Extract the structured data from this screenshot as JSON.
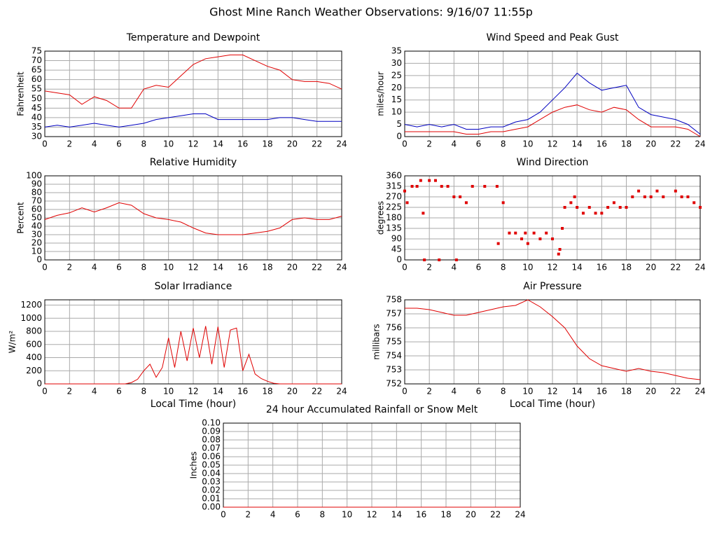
{
  "title": "Ghost Mine Ranch Weather Observations: 9/16/07 11:55p",
  "chart_data": [
    {
      "type": "line",
      "title": "Temperature and Dewpoint",
      "ylabel": "Fahrenheit",
      "x": [
        0,
        1,
        2,
        3,
        4,
        5,
        6,
        7,
        8,
        9,
        10,
        11,
        12,
        13,
        14,
        15,
        16,
        17,
        18,
        19,
        20,
        21,
        22,
        23,
        24
      ],
      "series": [
        {
          "name": "Temperature",
          "color": "#e00000",
          "values": [
            54,
            53,
            52,
            47,
            51,
            49,
            45,
            45,
            55,
            57,
            56,
            62,
            68,
            71,
            72,
            73,
            73,
            70,
            67,
            65,
            60,
            59,
            59,
            58,
            55
          ]
        },
        {
          "name": "Dewpoint",
          "color": "#0000c0",
          "values": [
            35,
            36,
            35,
            36,
            37,
            36,
            35,
            36,
            37,
            39,
            40,
            41,
            42,
            42,
            39,
            39,
            39,
            39,
            39,
            40,
            40,
            39,
            38,
            38,
            38
          ]
        }
      ],
      "xlim": [
        0,
        24
      ],
      "xticks": [
        0,
        2,
        4,
        6,
        8,
        10,
        12,
        14,
        16,
        18,
        20,
        22,
        24
      ],
      "ylim": [
        30,
        75
      ],
      "yticks": [
        30,
        35,
        40,
        45,
        50,
        55,
        60,
        65,
        70,
        75
      ],
      "grid": true
    },
    {
      "type": "line",
      "title": "Wind Speed and Peak Gust",
      "ylabel": "miles/hour",
      "x": [
        0,
        1,
        2,
        3,
        4,
        5,
        6,
        7,
        8,
        9,
        10,
        11,
        12,
        13,
        14,
        15,
        16,
        17,
        18,
        19,
        20,
        21,
        22,
        23,
        24
      ],
      "series": [
        {
          "name": "Peak Gust",
          "color": "#0000c0",
          "values": [
            5,
            4,
            5,
            4,
            5,
            3,
            3,
            4,
            4,
            6,
            7,
            10,
            15,
            20,
            26,
            22,
            19,
            20,
            21,
            12,
            9,
            8,
            7,
            5,
            1
          ]
        },
        {
          "name": "Wind Speed",
          "color": "#e00000",
          "values": [
            2,
            2,
            2,
            2,
            2,
            1,
            1,
            2,
            2,
            3,
            4,
            7,
            10,
            12,
            13,
            11,
            10,
            12,
            11,
            7,
            4,
            4,
            4,
            3,
            0
          ]
        }
      ],
      "xlim": [
        0,
        24
      ],
      "xticks": [
        0,
        2,
        4,
        6,
        8,
        10,
        12,
        14,
        16,
        18,
        20,
        22,
        24
      ],
      "ylim": [
        0,
        35
      ],
      "yticks": [
        0,
        5,
        10,
        15,
        20,
        25,
        30,
        35
      ],
      "grid": true
    },
    {
      "type": "line",
      "title": "Relative Humidity",
      "ylabel": "Percent",
      "x": [
        0,
        1,
        2,
        3,
        4,
        5,
        6,
        7,
        8,
        9,
        10,
        11,
        12,
        13,
        14,
        15,
        16,
        17,
        18,
        19,
        20,
        21,
        22,
        23,
        24
      ],
      "series": [
        {
          "name": "Relative Humidity",
          "color": "#e00000",
          "values": [
            48,
            53,
            56,
            62,
            57,
            62,
            68,
            65,
            55,
            50,
            48,
            45,
            38,
            32,
            30,
            30,
            30,
            32,
            34,
            38,
            48,
            50,
            48,
            48,
            52
          ]
        }
      ],
      "xlim": [
        0,
        24
      ],
      "xticks": [
        0,
        2,
        4,
        6,
        8,
        10,
        12,
        14,
        16,
        18,
        20,
        22,
        24
      ],
      "ylim": [
        0,
        100
      ],
      "yticks": [
        0,
        10,
        20,
        30,
        40,
        50,
        60,
        70,
        80,
        90,
        100
      ],
      "grid": true
    },
    {
      "type": "scatter",
      "title": "Wind Direction",
      "ylabel": "degrees",
      "color": "#e00000",
      "x": [
        0,
        0.2,
        0.6,
        1,
        1.3,
        1.5,
        1.6,
        2,
        2.5,
        2.8,
        3,
        3.5,
        4,
        4.2,
        4.5,
        5,
        5.5,
        6.5,
        7.5,
        7.6,
        8,
        8.5,
        9,
        9.5,
        9.8,
        10,
        10.5,
        11,
        11.5,
        12,
        12.5,
        12.6,
        12.8,
        13,
        13.5,
        13.8,
        14,
        14.5,
        15,
        15.5,
        16,
        16.5,
        17,
        17.5,
        18,
        18.5,
        19,
        19.5,
        20,
        20.5,
        21,
        22,
        22.5,
        23,
        23.5,
        24
      ],
      "values": [
        295,
        245,
        315,
        315,
        340,
        200,
        0,
        340,
        340,
        0,
        315,
        315,
        270,
        0,
        270,
        245,
        315,
        315,
        315,
        70,
        245,
        115,
        115,
        90,
        115,
        70,
        115,
        90,
        115,
        90,
        25,
        45,
        135,
        225,
        245,
        270,
        225,
        200,
        225,
        200,
        200,
        225,
        245,
        225,
        225,
        270,
        295,
        270,
        270,
        295,
        270,
        295,
        270,
        270,
        245,
        225
      ],
      "xlim": [
        0,
        24
      ],
      "xticks": [
        0,
        2,
        4,
        6,
        8,
        10,
        12,
        14,
        16,
        18,
        20,
        22,
        24
      ],
      "ylim": [
        0,
        360
      ],
      "yticks": [
        0,
        45,
        90,
        135,
        180,
        225,
        270,
        315,
        360
      ],
      "grid": true
    },
    {
      "type": "line",
      "title": "Solar Irradiance",
      "ylabel": "W/m²",
      "xlabel": "Local Time (hour)",
      "x": [
        0,
        0.5,
        1,
        1.5,
        2,
        2.5,
        3,
        3.5,
        4,
        4.5,
        5,
        5.5,
        6,
        6.5,
        7,
        7.5,
        8,
        8.5,
        9,
        9.5,
        10,
        10.5,
        11,
        11.5,
        12,
        12.5,
        13,
        13.5,
        14,
        14.5,
        15,
        15.5,
        16,
        16.5,
        17,
        17.5,
        18,
        18.5,
        19,
        19.5,
        20,
        20.5,
        21,
        21.5,
        22,
        22.5,
        23,
        23.5,
        24
      ],
      "series": [
        {
          "name": "Solar Irradiance",
          "color": "#e00000",
          "values": [
            0,
            0,
            0,
            0,
            0,
            0,
            0,
            0,
            0,
            0,
            0,
            0,
            0,
            0,
            20,
            70,
            200,
            300,
            100,
            250,
            700,
            250,
            800,
            350,
            850,
            400,
            880,
            300,
            870,
            250,
            820,
            850,
            200,
            450,
            150,
            80,
            40,
            10,
            0,
            0,
            0,
            0,
            0,
            0,
            0,
            0,
            0,
            0,
            0
          ]
        }
      ],
      "xlim": [
        0,
        24
      ],
      "xticks": [
        0,
        2,
        4,
        6,
        8,
        10,
        12,
        14,
        16,
        18,
        20,
        22,
        24
      ],
      "ylim": [
        0,
        1280
      ],
      "yticks": [
        0,
        200,
        400,
        600,
        800,
        1000,
        1200
      ],
      "grid": true
    },
    {
      "type": "line",
      "title": "Air Pressure",
      "ylabel": "millibars",
      "xlabel": "Local Time (hour)",
      "x": [
        0,
        1,
        2,
        3,
        4,
        5,
        6,
        7,
        8,
        9,
        10,
        11,
        12,
        13,
        14,
        15,
        16,
        17,
        18,
        19,
        20,
        21,
        22,
        23,
        24
      ],
      "series": [
        {
          "name": "Air Pressure",
          "color": "#e00000",
          "values": [
            757.4,
            757.4,
            757.3,
            757.1,
            756.9,
            756.9,
            757.1,
            757.3,
            757.5,
            757.6,
            758.0,
            757.5,
            756.8,
            756.0,
            754.7,
            753.8,
            753.3,
            753.1,
            752.9,
            753.1,
            752.9,
            752.8,
            752.6,
            752.4,
            752.3
          ]
        }
      ],
      "xlim": [
        0,
        24
      ],
      "xticks": [
        0,
        2,
        4,
        6,
        8,
        10,
        12,
        14,
        16,
        18,
        20,
        22,
        24
      ],
      "ylim": [
        752,
        758
      ],
      "yticks": [
        752,
        753,
        754,
        755,
        756,
        757,
        758
      ],
      "grid": true
    },
    {
      "type": "line",
      "title": "24 hour Accumulated Rainfall or Snow Melt",
      "ylabel": "Inches",
      "x": [
        0,
        2,
        4,
        6,
        8,
        10,
        12,
        14,
        16,
        18,
        20,
        22,
        24
      ],
      "series": [
        {
          "name": "Rainfall",
          "color": "#e00000",
          "values": [
            0,
            0,
            0,
            0,
            0,
            0,
            0,
            0,
            0,
            0,
            0,
            0,
            0
          ]
        }
      ],
      "xlim": [
        0,
        24
      ],
      "xticks": [
        0,
        2,
        4,
        6,
        8,
        10,
        12,
        14,
        16,
        18,
        20,
        22,
        24
      ],
      "ylim": [
        0,
        0.1
      ],
      "yticks": [
        {
          "value": 0,
          "label": "0.00"
        },
        {
          "value": 0.01,
          "label": "0.01"
        },
        {
          "value": 0.02,
          "label": "0.02"
        },
        {
          "value": 0.03,
          "label": "0.03"
        },
        {
          "value": 0.04,
          "label": "0.04"
        },
        {
          "value": 0.05,
          "label": "0.05"
        },
        {
          "value": 0.06,
          "label": "0.06"
        },
        {
          "value": 0.07,
          "label": "0.07"
        },
        {
          "value": 0.08,
          "label": "0.08"
        },
        {
          "value": 0.09,
          "label": "0.09"
        },
        {
          "value": 0.1,
          "label": "0.10"
        }
      ],
      "grid": true
    }
  ]
}
